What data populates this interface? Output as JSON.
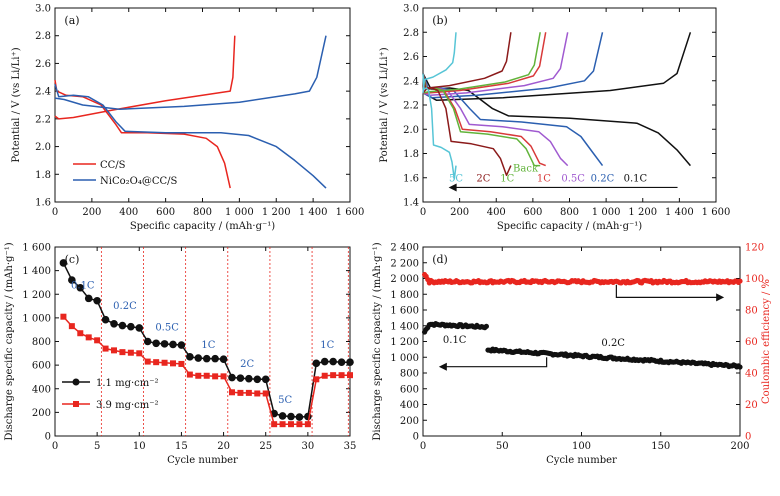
{
  "chart_data": [
    {
      "panel": "(a)",
      "type": "line",
      "xlabel": "Specific capacity / (mAh·g⁻¹)",
      "ylabel": "Potential / V (vs Li/Li⁺)",
      "xlim": [
        0,
        1600
      ],
      "ylim": [
        1.6,
        3.0
      ],
      "xticks": [
        "0",
        "200",
        "400",
        "600",
        "800",
        "1 000",
        "1 200",
        "1 400",
        "1 600"
      ],
      "yticks": [
        "1.6",
        "1.8",
        "2.0",
        "2.2",
        "2.4",
        "2.6",
        "2.8",
        "3.0"
      ],
      "legend_position": "bottom-left",
      "series": [
        {
          "name": "CC/S",
          "color": "#e8261f",
          "discharge": [
            [
              0,
              2.48
            ],
            [
              10,
              2.4
            ],
            [
              60,
              2.37
            ],
            [
              150,
              2.36
            ],
            [
              250,
              2.3
            ],
            [
              330,
              2.16
            ],
            [
              360,
              2.1
            ],
            [
              500,
              2.1
            ],
            [
              700,
              2.09
            ],
            [
              820,
              2.06
            ],
            [
              880,
              2.0
            ],
            [
              920,
              1.88
            ],
            [
              950,
              1.7
            ]
          ],
          "charge": [
            [
              0,
              2.22
            ],
            [
              20,
              2.2
            ],
            [
              100,
              2.21
            ],
            [
              300,
              2.26
            ],
            [
              600,
              2.33
            ],
            [
              800,
              2.37
            ],
            [
              900,
              2.39
            ],
            [
              950,
              2.4
            ],
            [
              965,
              2.5
            ],
            [
              975,
              2.8
            ]
          ]
        },
        {
          "name": "NiCo₂O₄@CC/S",
          "color": "#2b5fb0",
          "discharge": [
            [
              0,
              2.45
            ],
            [
              20,
              2.36
            ],
            [
              100,
              2.37
            ],
            [
              180,
              2.36
            ],
            [
              260,
              2.3
            ],
            [
              330,
              2.18
            ],
            [
              380,
              2.11
            ],
            [
              600,
              2.1
            ],
            [
              900,
              2.1
            ],
            [
              1050,
              2.08
            ],
            [
              1200,
              2.0
            ],
            [
              1300,
              1.9
            ],
            [
              1400,
              1.79
            ],
            [
              1470,
              1.7
            ]
          ],
          "charge": [
            [
              0,
              2.35
            ],
            [
              50,
              2.34
            ],
            [
              150,
              2.3
            ],
            [
              350,
              2.27
            ],
            [
              700,
              2.29
            ],
            [
              1000,
              2.32
            ],
            [
              1300,
              2.38
            ],
            [
              1380,
              2.4
            ],
            [
              1420,
              2.5
            ],
            [
              1470,
              2.8
            ]
          ]
        }
      ]
    },
    {
      "panel": "(b)",
      "type": "line",
      "xlabel": "Specific capacity / (mAh·g⁻¹)",
      "ylabel": "Potential / V (vs Li/Li⁺)",
      "xlim": [
        0,
        1600
      ],
      "ylim": [
        1.4,
        3.0
      ],
      "xticks": [
        "0",
        "200",
        "400",
        "600",
        "800",
        "1 000",
        "1 200",
        "1 400",
        "1 600"
      ],
      "yticks": [
        "1.4",
        "1.6",
        "1.8",
        "2.0",
        "2.2",
        "2.4",
        "2.6",
        "2.8",
        "3.0"
      ],
      "rate_labels": [
        {
          "text": "5C",
          "color": "#57c5d6",
          "x": 180
        },
        {
          "text": "2C",
          "color": "#8b1a1a",
          "x": 330
        },
        {
          "text": "1C",
          "color": "#61b33a",
          "x": 460
        },
        {
          "text": "Back",
          "color": "#61b33a",
          "x": 560
        },
        {
          "text": "1C",
          "color": "#d83a3a",
          "x": 660
        },
        {
          "text": "0.5C",
          "color": "#a05ad0",
          "x": 820
        },
        {
          "text": "0.2C",
          "color": "#2b5fb0",
          "x": 980
        },
        {
          "text": "0.1C",
          "color": "#111111",
          "x": 1160
        }
      ],
      "series": [
        {
          "name": "0.1C",
          "color": "#111111",
          "capacity": 1460,
          "discharge_plateau": 2.09,
          "charge_plateau": 2.28
        },
        {
          "name": "0.2C",
          "color": "#2b5fb0",
          "capacity": 980,
          "discharge_plateau": 2.06,
          "charge_plateau": 2.3
        },
        {
          "name": "0.5C",
          "color": "#a05ad0",
          "capacity": 790,
          "discharge_plateau": 2.02,
          "charge_plateau": 2.32
        },
        {
          "name": "1C",
          "color": "#d83a3a",
          "capacity": 670,
          "discharge_plateau": 1.98,
          "charge_plateau": 2.34
        },
        {
          "name": "Back 1C",
          "color": "#61b33a",
          "capacity": 640,
          "discharge_plateau": 1.96,
          "charge_plateau": 2.35
        },
        {
          "name": "2C",
          "color": "#8b1a1a",
          "capacity": 480,
          "discharge_plateau": 1.88,
          "charge_plateau": 2.38
        },
        {
          "name": "5C",
          "color": "#57c5d6",
          "capacity": 180,
          "discharge_plateau": 1.85,
          "charge_plateau": 2.45
        }
      ]
    },
    {
      "panel": "(c)",
      "type": "scatter",
      "xlabel": "Cycle number",
      "ylabel": "Discharge specific capacity / (mAh·g⁻¹)",
      "xlim": [
        0,
        35
      ],
      "ylim": [
        0,
        1600
      ],
      "xticks": [
        "0",
        "5",
        "10",
        "15",
        "20",
        "25",
        "30",
        "35"
      ],
      "yticks": [
        "0",
        "200",
        "400",
        "600",
        "800",
        "1 000",
        "1 200",
        "1 400",
        "1 600"
      ],
      "rate_labels": [
        {
          "text": "0.1C",
          "x": 3.3,
          "y": 1250
        },
        {
          "text": "0.2C",
          "x": 8.3,
          "y": 1075
        },
        {
          "text": "0.5C",
          "x": 13.3,
          "y": 895
        },
        {
          "text": "1C",
          "x": 18.2,
          "y": 745
        },
        {
          "text": "2C",
          "x": 22.8,
          "y": 585
        },
        {
          "text": "5C",
          "x": 27.3,
          "y": 280
        },
        {
          "text": "1C",
          "x": 32.3,
          "y": 745
        }
      ],
      "rate_boundaries": [
        5.5,
        10.5,
        15.5,
        20.5,
        25.5,
        30.5,
        34.8
      ],
      "legend_position": "bottom-left",
      "x": [
        1,
        2,
        3,
        4,
        5,
        6,
        7,
        8,
        9,
        10,
        11,
        12,
        13,
        14,
        15,
        16,
        17,
        18,
        19,
        20,
        21,
        22,
        23,
        24,
        25,
        26,
        27,
        28,
        29,
        30,
        31,
        32,
        33,
        34,
        35
      ],
      "series": [
        {
          "name": "1.1 mg·cm⁻²",
          "color": "#111111",
          "marker": "circle",
          "values": [
            1465,
            1320,
            1255,
            1165,
            1145,
            985,
            950,
            935,
            925,
            915,
            800,
            785,
            780,
            775,
            770,
            670,
            660,
            655,
            655,
            650,
            495,
            490,
            485,
            480,
            480,
            190,
            170,
            165,
            160,
            165,
            615,
            630,
            630,
            625,
            625
          ]
        },
        {
          "name": "3.9 mg·cm⁻²",
          "color": "#e8261f",
          "marker": "square",
          "values": [
            1010,
            930,
            870,
            835,
            810,
            740,
            725,
            710,
            705,
            700,
            630,
            625,
            620,
            615,
            610,
            520,
            510,
            510,
            505,
            505,
            370,
            365,
            365,
            360,
            360,
            100,
            100,
            100,
            100,
            100,
            480,
            510,
            515,
            515,
            515
          ]
        }
      ]
    },
    {
      "panel": "(d)",
      "type": "scatter",
      "xlabel": "Cycle number",
      "ylabel": "Discharge specific capacity / (mAh·g⁻¹)",
      "ylabel_right": "Coulombic efficiency / %",
      "xlim": [
        0,
        200
      ],
      "ylim": [
        0,
        2400
      ],
      "ylim_right": [
        0,
        120
      ],
      "xticks": [
        "0",
        "50",
        "100",
        "150",
        "200"
      ],
      "yticks": [
        "0",
        "200",
        "400",
        "600",
        "800",
        "1 000",
        "1 200",
        "1 400",
        "1 600",
        "1 800",
        "2 000",
        "2 200",
        "2 400"
      ],
      "yticks_right": [
        "0",
        "20",
        "40",
        "60",
        "80",
        "100",
        "120"
      ],
      "rate_labels": [
        {
          "text": "0.1C",
          "x": 20,
          "y": 1180
        },
        {
          "text": "0.2C",
          "x": 120,
          "y": 1140
        }
      ],
      "series": [
        {
          "name": "0.1C",
          "color": "#111111",
          "axis": "left",
          "x_range": [
            1,
            40
          ],
          "start": 1320,
          "plateau": 1420,
          "end": 1385
        },
        {
          "name": "0.2C",
          "color": "#111111",
          "axis": "left",
          "x_range": [
            41,
            200
          ],
          "start": 1095,
          "end": 885
        },
        {
          "name": "Coulombic efficiency",
          "color": "#e8261f",
          "axis": "right",
          "x_range": [
            1,
            200
          ],
          "start": 103,
          "plateau": 98
        }
      ]
    }
  ]
}
